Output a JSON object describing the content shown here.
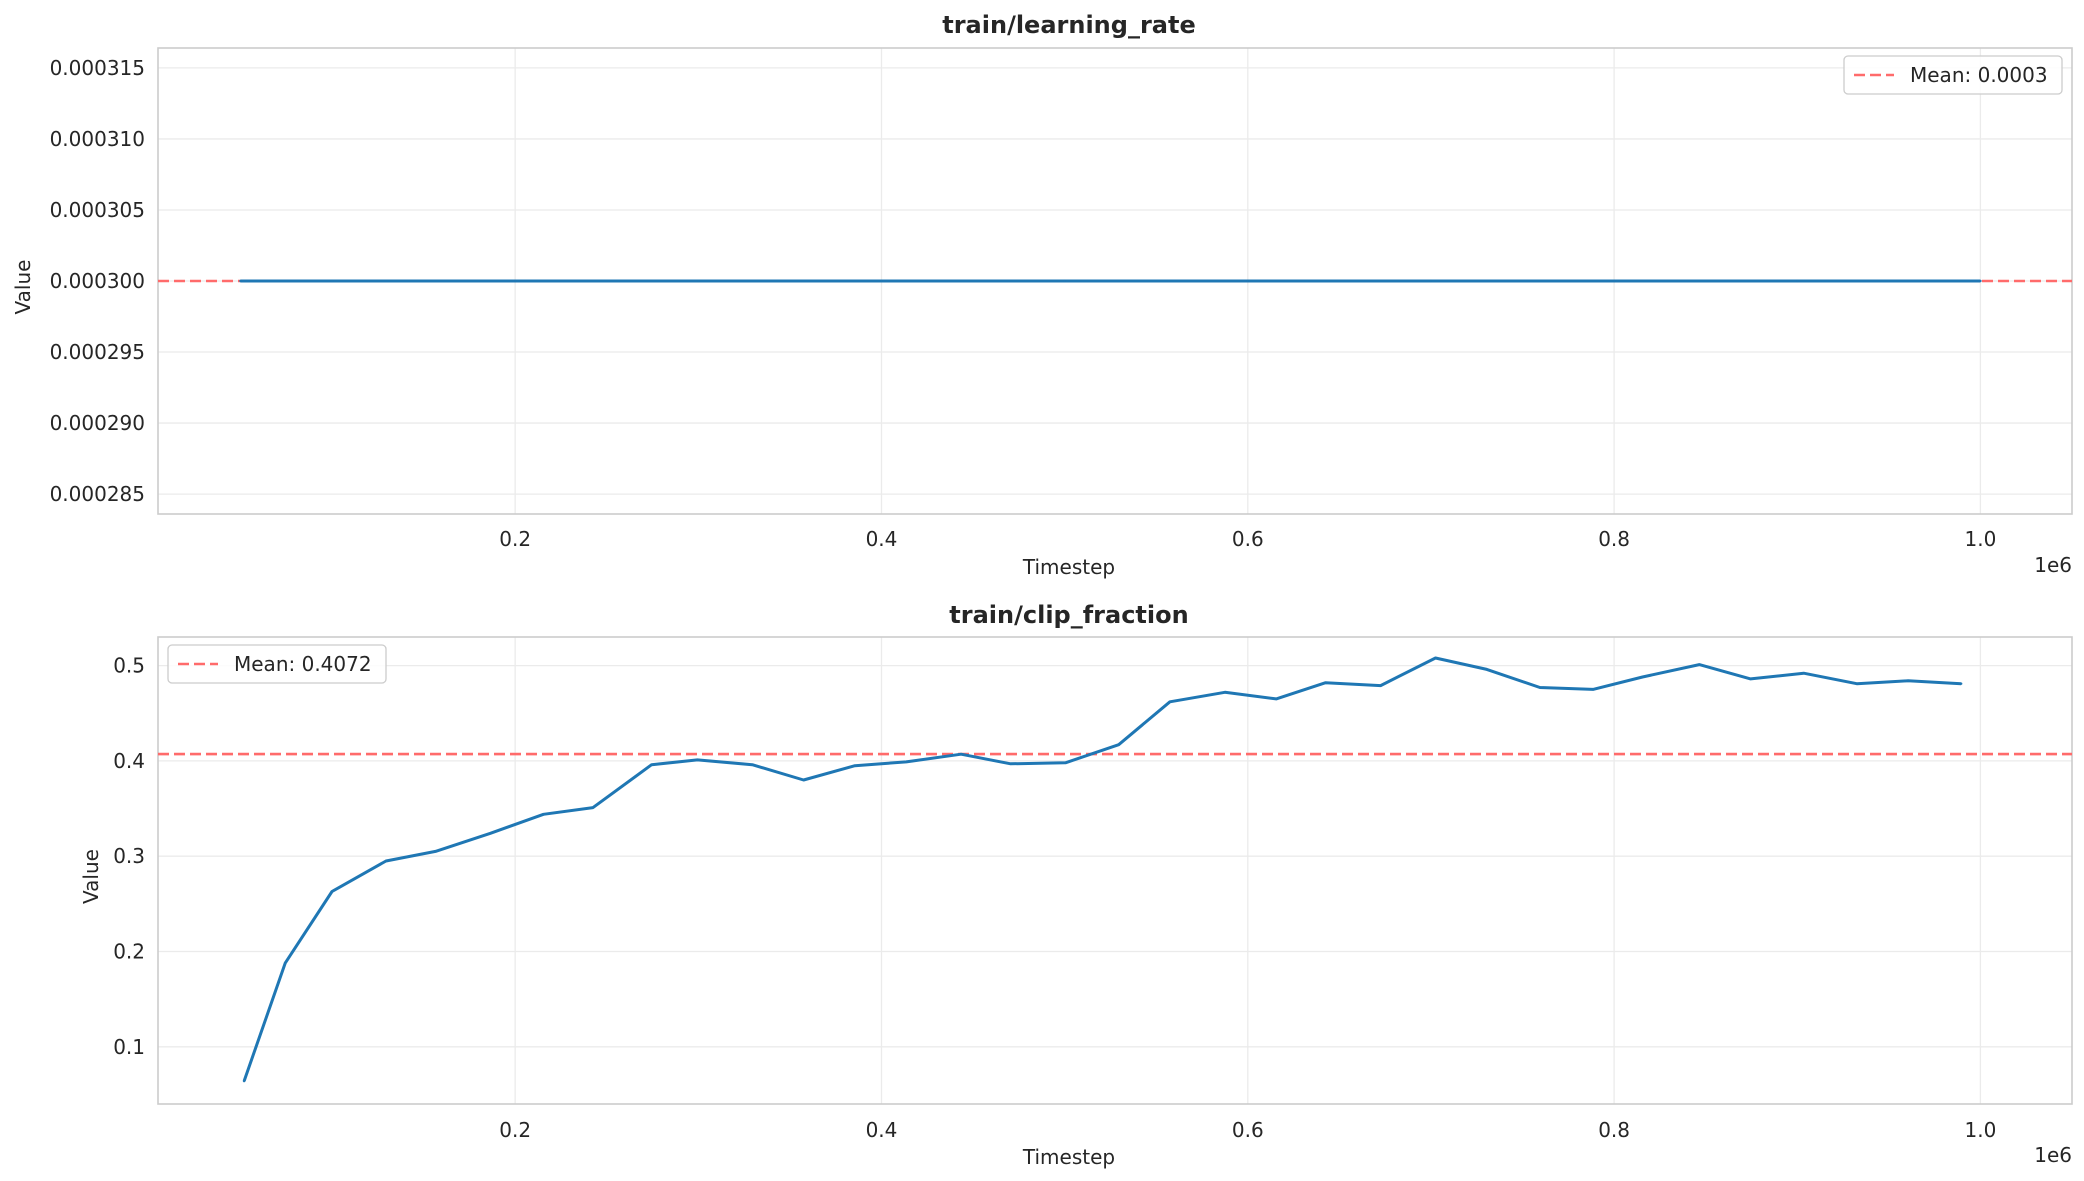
{
  "chart_data": [
    {
      "type": "line",
      "title": "train/learning_rate",
      "xlabel": "Timestep",
      "ylabel": "Value",
      "x_multiplier_label": "1e6",
      "xlim": [
        0.005,
        1.05
      ],
      "ylim": [
        0.0002836,
        0.0003164
      ],
      "x_ticks": [
        0.2,
        0.4,
        0.6,
        0.8,
        1.0
      ],
      "x_tick_labels": [
        "0.2",
        "0.4",
        "0.6",
        "0.8",
        "1.0"
      ],
      "y_ticks": [
        0.000285,
        0.00029,
        0.000295,
        0.0003,
        0.000305,
        0.00031,
        0.000315
      ],
      "y_tick_labels": [
        "0.000285",
        "0.000290",
        "0.000295",
        "0.000300",
        "0.000305",
        "0.000310",
        "0.000315"
      ],
      "grid": true,
      "legend_position": "top-right",
      "series": [
        {
          "x": [
            0.05,
            0.1,
            0.2,
            0.3,
            0.4,
            0.5,
            0.6,
            0.7,
            0.8,
            0.9,
            1.0
          ],
          "values": [
            0.0003,
            0.0003,
            0.0003,
            0.0003,
            0.0003,
            0.0003,
            0.0003,
            0.0003,
            0.0003,
            0.0003,
            0.0003
          ],
          "color": "#1f77b4"
        }
      ],
      "mean": {
        "label": "Mean: 0.0003",
        "value": 0.0003,
        "color": "#ff6b6b"
      }
    },
    {
      "type": "line",
      "title": "train/clip_fraction",
      "xlabel": "Timestep",
      "ylabel": "Value",
      "x_multiplier_label": "1e6",
      "xlim": [
        0.005,
        1.05
      ],
      "ylim": [
        0.04,
        0.53
      ],
      "x_ticks": [
        0.2,
        0.4,
        0.6,
        0.8,
        1.0
      ],
      "x_tick_labels": [
        "0.2",
        "0.4",
        "0.6",
        "0.8",
        "1.0"
      ],
      "y_ticks": [
        0.1,
        0.2,
        0.3,
        0.4,
        0.5
      ],
      "y_tick_labels": [
        "0.1",
        "0.2",
        "0.3",
        "0.4",
        "0.5"
      ],
      "grid": true,
      "legend_position": "top-left",
      "series": [
        {
          "x": [
            0.052,
            0.0745,
            0.1,
            0.1295,
            0.1565,
            0.1865,
            0.2155,
            0.2425,
            0.2745,
            0.2995,
            0.3295,
            0.3575,
            0.3855,
            0.4135,
            0.4435,
            0.4705,
            0.5005,
            0.5295,
            0.5575,
            0.5875,
            0.6155,
            0.6425,
            0.6725,
            0.7025,
            0.7305,
            0.7595,
            0.7885,
            0.8155,
            0.8465,
            0.8745,
            0.9035,
            0.9325,
            0.9605,
            0.9895
          ],
          "values": [
            0.064,
            0.188,
            0.263,
            0.295,
            0.305,
            0.324,
            0.344,
            0.351,
            0.396,
            0.401,
            0.396,
            0.38,
            0.395,
            0.399,
            0.407,
            0.397,
            0.398,
            0.417,
            0.462,
            0.472,
            0.465,
            0.482,
            0.479,
            0.508,
            0.496,
            0.477,
            0.475,
            0.488,
            0.501,
            0.486,
            0.492,
            0.481,
            0.484,
            0.481
          ],
          "color": "#1f77b4"
        }
      ],
      "mean": {
        "label": "Mean: 0.4072",
        "value": 0.4072,
        "color": "#ff6b6b"
      }
    }
  ]
}
